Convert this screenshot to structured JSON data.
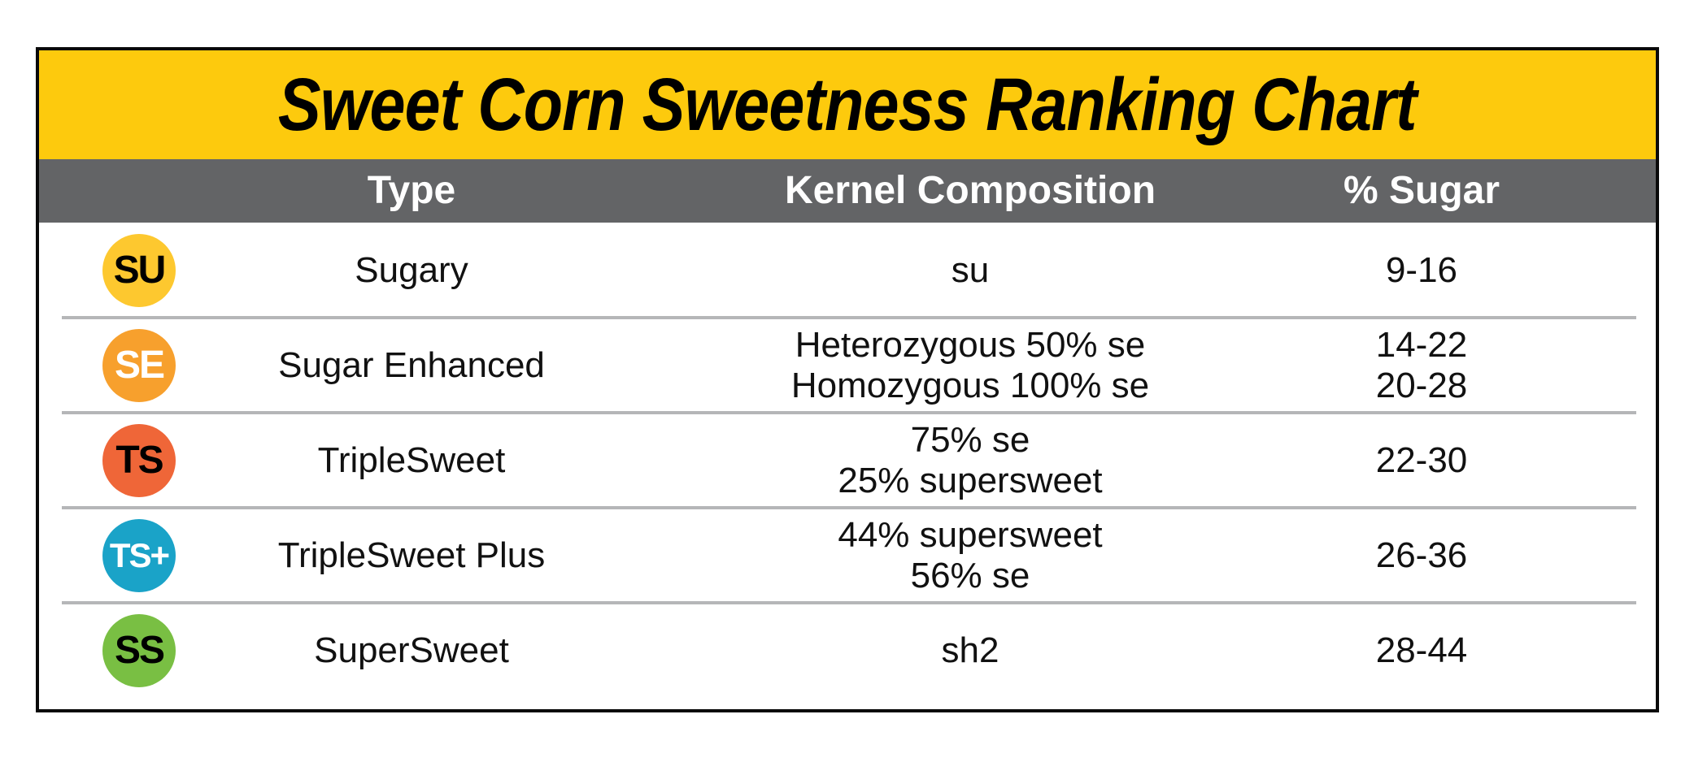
{
  "chart_data": {
    "type": "table",
    "title": "Sweet Corn Sweetness Ranking Chart",
    "columns": [
      "Type",
      "Kernel Composition",
      "% Sugar"
    ],
    "rows": [
      {
        "badge": "SU",
        "badge_color": "#fdc82f",
        "type": "Sugary",
        "composition": [
          "su"
        ],
        "sugar": [
          "9-16"
        ]
      },
      {
        "badge": "SE",
        "badge_color": "#f7a02d",
        "type": "Sugar Enhanced",
        "composition": [
          "Heterozygous 50% se",
          "Homozygous 100% se"
        ],
        "sugar": [
          "14-22",
          "20-28"
        ]
      },
      {
        "badge": "TS",
        "badge_color": "#ef6638",
        "type": "TripleSweet",
        "composition": [
          "75% se",
          "25% supersweet"
        ],
        "sugar": [
          "22-30"
        ]
      },
      {
        "badge": "TS+",
        "badge_color": "#1aa3c8",
        "type": "TripleSweet Plus",
        "composition": [
          "44% supersweet",
          "56% se"
        ],
        "sugar": [
          "26-36"
        ]
      },
      {
        "badge": "SS",
        "badge_color": "#79bf43",
        "type": "SuperSweet",
        "composition": [
          "sh2"
        ],
        "sugar": [
          "28-44"
        ]
      }
    ]
  },
  "colors": {
    "title_band": "#fdca0d",
    "header_band": "#636466",
    "divider": "#b5b6b8",
    "frame": "#0a0a0a"
  }
}
